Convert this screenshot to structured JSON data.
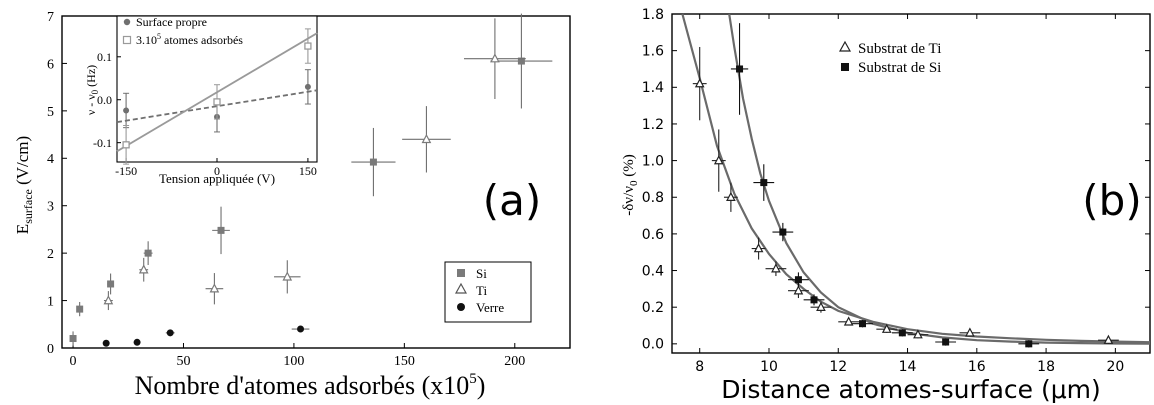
{
  "chart_data": [
    {
      "type": "scatter",
      "panel_label": "(a)",
      "xlabel": "Nombre d'atomes adsorbés (x10",
      "xlabel_sup": "5",
      "xlabel_end": ")",
      "ylabel_main": "E",
      "ylabel_sub": "surface",
      "ylabel_unit": " (V/cm)",
      "xlim": [
        -5,
        225
      ],
      "ylim": [
        0,
        7
      ],
      "xticks": [
        0,
        50,
        100,
        150,
        200
      ],
      "yticks": [
        0,
        1,
        2,
        3,
        4,
        5,
        6,
        7
      ],
      "legend": {
        "position": "bottom-right",
        "entries": [
          "Si",
          "Ti",
          "Verre"
        ]
      },
      "series": [
        {
          "name": "Si",
          "marker": "square",
          "color": "#7a7a7a",
          "points": [
            {
              "x": 0,
              "y": 0.2,
              "yerr": 0.15,
              "xerr": 0
            },
            {
              "x": 3,
              "y": 0.82,
              "yerr": 0.15,
              "xerr": 0
            },
            {
              "x": 17,
              "y": 1.35,
              "yerr": 0.22,
              "xerr": 1.5
            },
            {
              "x": 34,
              "y": 2.0,
              "yerr": 0.25,
              "xerr": 2
            },
            {
              "x": 67,
              "y": 2.48,
              "yerr": 0.5,
              "xerr": 4
            },
            {
              "x": 136,
              "y": 3.92,
              "yerr": 0.72,
              "xerr": 10
            },
            {
              "x": 203,
              "y": 6.05,
              "yerr": 1.0,
              "xerr": 14
            }
          ]
        },
        {
          "name": "Ti",
          "marker": "triangle",
          "color": "#7a7a7a",
          "points": [
            {
              "x": 16,
              "y": 1.0,
              "yerr": 0.2,
              "xerr": 2
            },
            {
              "x": 32,
              "y": 1.65,
              "yerr": 0.25,
              "xerr": 2
            },
            {
              "x": 64,
              "y": 1.25,
              "yerr": 0.33,
              "xerr": 4
            },
            {
              "x": 97,
              "y": 1.5,
              "yerr": 0.35,
              "xerr": 6
            },
            {
              "x": 160,
              "y": 4.4,
              "yerr": 0.7,
              "xerr": 11
            },
            {
              "x": 191,
              "y": 6.1,
              "yerr": 0.85,
              "xerr": 14
            }
          ]
        },
        {
          "name": "Verre",
          "marker": "circle",
          "color": "#111111",
          "points": [
            {
              "x": 15,
              "y": 0.1,
              "yerr": 0,
              "xerr": 0
            },
            {
              "x": 29,
              "y": 0.12,
              "yerr": 0,
              "xerr": 0
            },
            {
              "x": 44,
              "y": 0.32,
              "yerr": 0,
              "xerr": 2
            },
            {
              "x": 103,
              "y": 0.4,
              "yerr": 0,
              "xerr": 4
            }
          ]
        }
      ]
    },
    {
      "type": "line",
      "inset_of": "(a)",
      "xlabel": "Tension appliquée (V)",
      "ylabel": "ν - ν",
      "ylabel_sub": "0",
      "ylabel_unit": " (Hz)",
      "xlim": [
        -165,
        165
      ],
      "ylim": [
        -0.145,
        0.195
      ],
      "xticks": [
        -150,
        0,
        150
      ],
      "yticks": [
        -0.1,
        0.0,
        0.1
      ],
      "legend": {
        "position": "top-left",
        "entries": [
          "Surface propre",
          "3.10",
          "5",
          " atomes adsorbés"
        ]
      },
      "series": [
        {
          "name": "Surface propre",
          "marker": "circle",
          "color": "#707070",
          "points": [
            {
              "x": -150,
              "y": -0.025,
              "yerr": 0.04
            },
            {
              "x": 0,
              "y": -0.04,
              "yerr": 0.035
            },
            {
              "x": 150,
              "y": 0.03,
              "yerr": 0.04
            }
          ],
          "fit": [
            [
              -165,
              -0.052
            ],
            [
              165,
              0.022
            ]
          ],
          "fit_style": "dashed"
        },
        {
          "name": "3.10^5 atomes adsorbés",
          "marker": "square_open",
          "color": "#9a9a9a",
          "points": [
            {
              "x": -150,
              "y": -0.105,
              "yerr": 0.045
            },
            {
              "x": 0,
              "y": -0.005,
              "yerr": 0.04
            },
            {
              "x": 150,
              "y": 0.125,
              "yerr": 0.04
            }
          ],
          "fit": [
            [
              -165,
              -0.12
            ],
            [
              165,
              0.155
            ]
          ],
          "fit_style": "solid"
        }
      ]
    },
    {
      "type": "scatter",
      "panel_label": "(b)",
      "xlabel": "Distance atomes-surface (μm)",
      "ylabel": "-δν/ν",
      "ylabel_sub": "0",
      "ylabel_unit": " (%)",
      "xlim": [
        7.2,
        21
      ],
      "ylim": [
        -0.05,
        1.8
      ],
      "xticks": [
        8,
        10,
        12,
        14,
        16,
        18,
        20
      ],
      "yticks": [
        0.0,
        0.2,
        0.4,
        0.6,
        0.8,
        1.0,
        1.2,
        1.4,
        1.6,
        1.8
      ],
      "legend": {
        "position": "top-right",
        "entries": [
          "Substrat de Ti",
          "Substrat de Si"
        ]
      },
      "series": [
        {
          "name": "Substrat de Ti",
          "marker": "triangle",
          "color": "#222222",
          "points": [
            {
              "x": 8.0,
              "y": 1.42,
              "yerr": 0.2,
              "xerr": 0.2
            },
            {
              "x": 8.55,
              "y": 1.0,
              "yerr": 0.17,
              "xerr": 0.2
            },
            {
              "x": 8.9,
              "y": 0.8,
              "yerr": 0.08,
              "xerr": 0.2
            },
            {
              "x": 9.7,
              "y": 0.52,
              "yerr": 0.06,
              "xerr": 0.2
            },
            {
              "x": 10.2,
              "y": 0.41,
              "yerr": 0.04,
              "xerr": 0.3
            },
            {
              "x": 10.85,
              "y": 0.29,
              "yerr": 0.04,
              "xerr": 0.3
            },
            {
              "x": 11.5,
              "y": 0.2,
              "yerr": 0.03,
              "xerr": 0.3
            },
            {
              "x": 12.3,
              "y": 0.12,
              "yerr": 0.02,
              "xerr": 0.3
            },
            {
              "x": 13.4,
              "y": 0.08,
              "yerr": 0.02,
              "xerr": 0.3
            },
            {
              "x": 14.3,
              "y": 0.05,
              "yerr": 0.02,
              "xerr": 0.3
            },
            {
              "x": 15.8,
              "y": 0.06,
              "yerr": 0.02,
              "xerr": 0.3
            },
            {
              "x": 19.8,
              "y": 0.02,
              "yerr": 0.02,
              "xerr": 0.3
            }
          ],
          "fit": [
            [
              7.5,
              2.06
            ],
            [
              8.0,
              1.45
            ],
            [
              8.5,
              1.08
            ],
            [
              9,
              0.82
            ],
            [
              9.5,
              0.63
            ],
            [
              10,
              0.49
            ],
            [
              10.5,
              0.38
            ],
            [
              11,
              0.3
            ],
            [
              11.5,
              0.23
            ],
            [
              12,
              0.18
            ],
            [
              13,
              0.12
            ],
            [
              14,
              0.08
            ],
            [
              15,
              0.055
            ],
            [
              16,
              0.04
            ],
            [
              17,
              0.03
            ],
            [
              18,
              0.022
            ],
            [
              19,
              0.016
            ],
            [
              20,
              0.012
            ],
            [
              21,
              0.009
            ]
          ]
        },
        {
          "name": "Substrat de Si",
          "marker": "square",
          "color": "#111111",
          "points": [
            {
              "x": 9.15,
              "y": 1.5,
              "yerr": 0.25,
              "xerr": 0.25
            },
            {
              "x": 9.85,
              "y": 0.88,
              "yerr": 0.1,
              "xerr": 0.3
            },
            {
              "x": 10.4,
              "y": 0.61,
              "yerr": 0.05,
              "xerr": 0.3
            },
            {
              "x": 10.85,
              "y": 0.35,
              "yerr": 0.04,
              "xerr": 0.3
            },
            {
              "x": 11.3,
              "y": 0.24,
              "yerr": 0.03,
              "xerr": 0.3
            },
            {
              "x": 12.7,
              "y": 0.11,
              "yerr": 0.02,
              "xerr": 0.3
            },
            {
              "x": 13.85,
              "y": 0.06,
              "yerr": 0.02,
              "xerr": 0.3
            },
            {
              "x": 15.1,
              "y": 0.01,
              "yerr": 0.02,
              "xerr": 0.3
            },
            {
              "x": 17.5,
              "y": 0.0,
              "yerr": 0.02,
              "xerr": 0.3
            }
          ],
          "fit": [
            [
              8.85,
              1.8
            ],
            [
              9.0,
              1.62
            ],
            [
              9.25,
              1.34
            ],
            [
              9.5,
              1.12
            ],
            [
              9.75,
              0.93
            ],
            [
              10,
              0.78
            ],
            [
              10.5,
              0.55
            ],
            [
              11,
              0.39
            ],
            [
              11.5,
              0.28
            ],
            [
              12,
              0.2
            ],
            [
              13,
              0.11
            ],
            [
              14,
              0.06
            ],
            [
              15,
              0.035
            ],
            [
              16,
              0.02
            ],
            [
              17,
              0.012
            ],
            [
              18,
              0.007
            ],
            [
              19,
              0.004
            ],
            [
              20,
              0.002
            ],
            [
              21,
              0.001
            ]
          ]
        }
      ]
    }
  ]
}
